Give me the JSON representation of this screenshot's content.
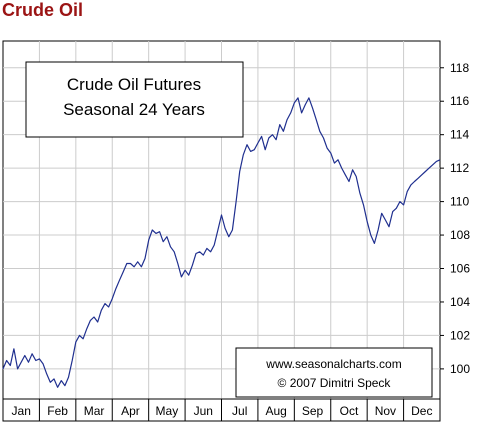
{
  "header": {
    "title": "Crude Oil"
  },
  "chart_data": {
    "type": "line",
    "title_lines": [
      "Crude Oil Futures",
      "Seasonal 24 Years"
    ],
    "credit_lines": [
      "www.seasonalcharts.com",
      "© 2007   Dimitri Speck"
    ],
    "categories": [
      "Jan",
      "Feb",
      "Mar",
      "Apr",
      "May",
      "Jun",
      "Jul",
      "Aug",
      "Sep",
      "Oct",
      "Nov",
      "Dec"
    ],
    "y_ticks": [
      100,
      102,
      104,
      106,
      108,
      110,
      112,
      114,
      116,
      118
    ],
    "ylim": [
      98.2,
      119.6
    ],
    "xlim": [
      0,
      12
    ],
    "grid": true,
    "colors": {
      "line": "#1f2f8f",
      "grid": "#cccccc",
      "title": "#9b1414"
    },
    "x": [
      0.0,
      0.1,
      0.2,
      0.3,
      0.4,
      0.5,
      0.6,
      0.7,
      0.8,
      0.9,
      1.0,
      1.1,
      1.2,
      1.3,
      1.4,
      1.5,
      1.6,
      1.7,
      1.8,
      1.9,
      2.0,
      2.1,
      2.2,
      2.3,
      2.4,
      2.5,
      2.6,
      2.7,
      2.8,
      2.9,
      3.0,
      3.1,
      3.2,
      3.3,
      3.4,
      3.5,
      3.6,
      3.7,
      3.8,
      3.9,
      4.0,
      4.1,
      4.2,
      4.3,
      4.4,
      4.5,
      4.6,
      4.7,
      4.8,
      4.9,
      5.0,
      5.1,
      5.2,
      5.3,
      5.4,
      5.5,
      5.6,
      5.7,
      5.8,
      5.9,
      6.0,
      6.1,
      6.2,
      6.3,
      6.4,
      6.5,
      6.6,
      6.7,
      6.8,
      6.9,
      7.0,
      7.1,
      7.2,
      7.3,
      7.4,
      7.5,
      7.6,
      7.7,
      7.8,
      7.9,
      8.0,
      8.1,
      8.2,
      8.3,
      8.4,
      8.5,
      8.6,
      8.7,
      8.8,
      8.9,
      9.0,
      9.1,
      9.2,
      9.3,
      9.4,
      9.5,
      9.6,
      9.7,
      9.8,
      9.9,
      10.0,
      10.1,
      10.2,
      10.3,
      10.4,
      10.5,
      10.6,
      10.7,
      10.8,
      10.9,
      11.0,
      11.1,
      11.2,
      11.3,
      11.4,
      11.5,
      11.6,
      11.7,
      11.8,
      11.9,
      12.0
    ],
    "values": [
      100.0,
      100.5,
      100.2,
      101.2,
      100.0,
      100.4,
      100.8,
      100.4,
      100.9,
      100.5,
      100.6,
      100.3,
      99.7,
      99.2,
      99.4,
      98.9,
      99.3,
      99.0,
      99.5,
      100.5,
      101.6,
      102.0,
      101.8,
      102.4,
      102.9,
      103.1,
      102.8,
      103.5,
      103.9,
      103.7,
      104.2,
      104.8,
      105.3,
      105.8,
      106.3,
      106.3,
      106.1,
      106.4,
      106.1,
      106.6,
      107.7,
      108.3,
      108.1,
      108.2,
      107.6,
      107.9,
      107.3,
      107.0,
      106.3,
      105.5,
      105.9,
      105.6,
      106.2,
      106.9,
      107.0,
      106.8,
      107.2,
      107.0,
      107.4,
      108.3,
      109.2,
      108.4,
      107.9,
      108.3,
      110.0,
      111.8,
      112.8,
      113.4,
      113.0,
      113.1,
      113.5,
      113.9,
      113.1,
      113.8,
      114.0,
      113.7,
      114.6,
      114.2,
      114.9,
      115.3,
      115.9,
      116.2,
      115.3,
      115.8,
      116.2,
      115.6,
      114.9,
      114.2,
      113.8,
      113.2,
      112.9,
      112.3,
      112.5,
      112.0,
      111.6,
      111.2,
      111.9,
      111.5,
      110.5,
      109.8,
      108.8,
      108.0,
      107.5,
      108.3,
      109.3,
      108.9,
      108.5,
      109.4,
      109.6,
      110.0,
      109.8,
      110.6,
      111.0,
      111.2,
      111.4,
      111.6,
      111.8,
      112.0,
      112.2,
      112.4,
      112.5
    ]
  }
}
